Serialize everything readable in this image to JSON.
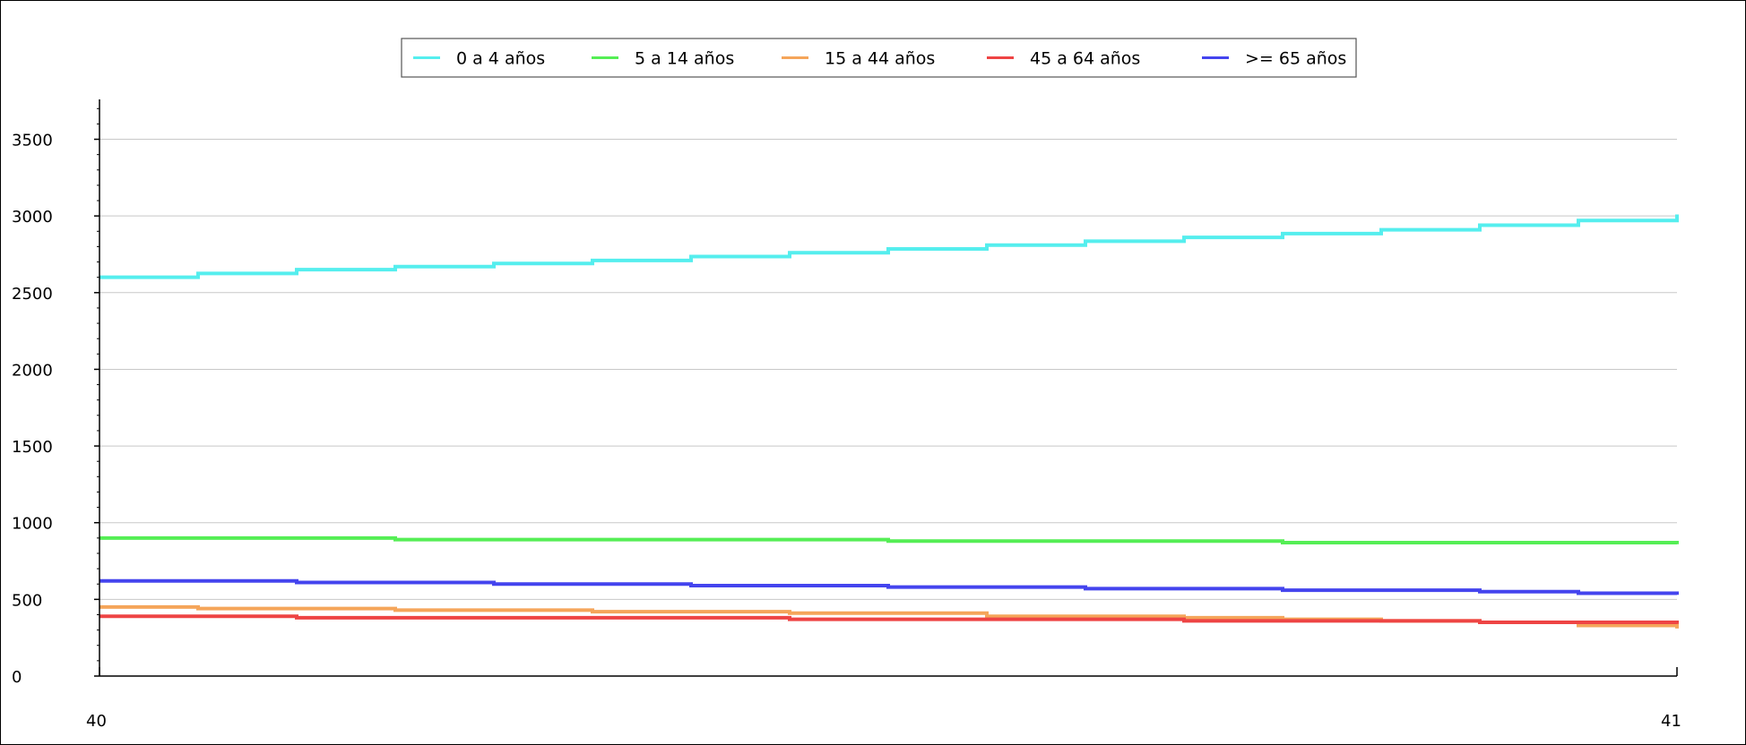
{
  "chart_data": {
    "type": "line",
    "step": true,
    "x": [
      40.0,
      40.0625,
      40.125,
      40.1875,
      40.25,
      40.3125,
      40.375,
      40.4375,
      40.5,
      40.5625,
      40.625,
      40.6875,
      40.75,
      40.8125,
      40.875,
      40.9375,
      41.0
    ],
    "series": [
      {
        "name": "0 a 4 años",
        "color": "#55eeee",
        "values": [
          2600,
          2625,
          2650,
          2670,
          2690,
          2710,
          2735,
          2760,
          2785,
          2810,
          2835,
          2860,
          2885,
          2910,
          2940,
          2970,
          3010
        ]
      },
      {
        "name": "5 a 14 años",
        "color": "#55ee55",
        "values": [
          900,
          900,
          900,
          890,
          890,
          890,
          890,
          890,
          880,
          880,
          880,
          880,
          870,
          870,
          870,
          870,
          860
        ]
      },
      {
        "name": "15 a 44 años",
        "color": "#f5a55a",
        "values": [
          450,
          440,
          440,
          430,
          430,
          420,
          420,
          410,
          410,
          390,
          390,
          380,
          370,
          360,
          350,
          330,
          310
        ]
      },
      {
        "name": "45 a 64 años",
        "color": "#ee4444",
        "values": [
          390,
          390,
          380,
          380,
          380,
          380,
          380,
          370,
          370,
          370,
          370,
          360,
          360,
          360,
          350,
          350,
          340
        ]
      },
      {
        "name": ">= 65 años",
        "color": "#4444ee",
        "values": [
          620,
          620,
          610,
          610,
          600,
          600,
          590,
          590,
          580,
          580,
          570,
          570,
          560,
          560,
          550,
          540,
          530
        ]
      }
    ],
    "xticks": [
      "40",
      "41"
    ],
    "yticks": [
      0,
      500,
      1000,
      1500,
      2000,
      2500,
      3000,
      3500
    ],
    "xlim": [
      40,
      41
    ],
    "ylim": [
      0,
      3760
    ],
    "grid": true,
    "legend": "top-center",
    "title": "",
    "xlabel": "",
    "ylabel": ""
  }
}
